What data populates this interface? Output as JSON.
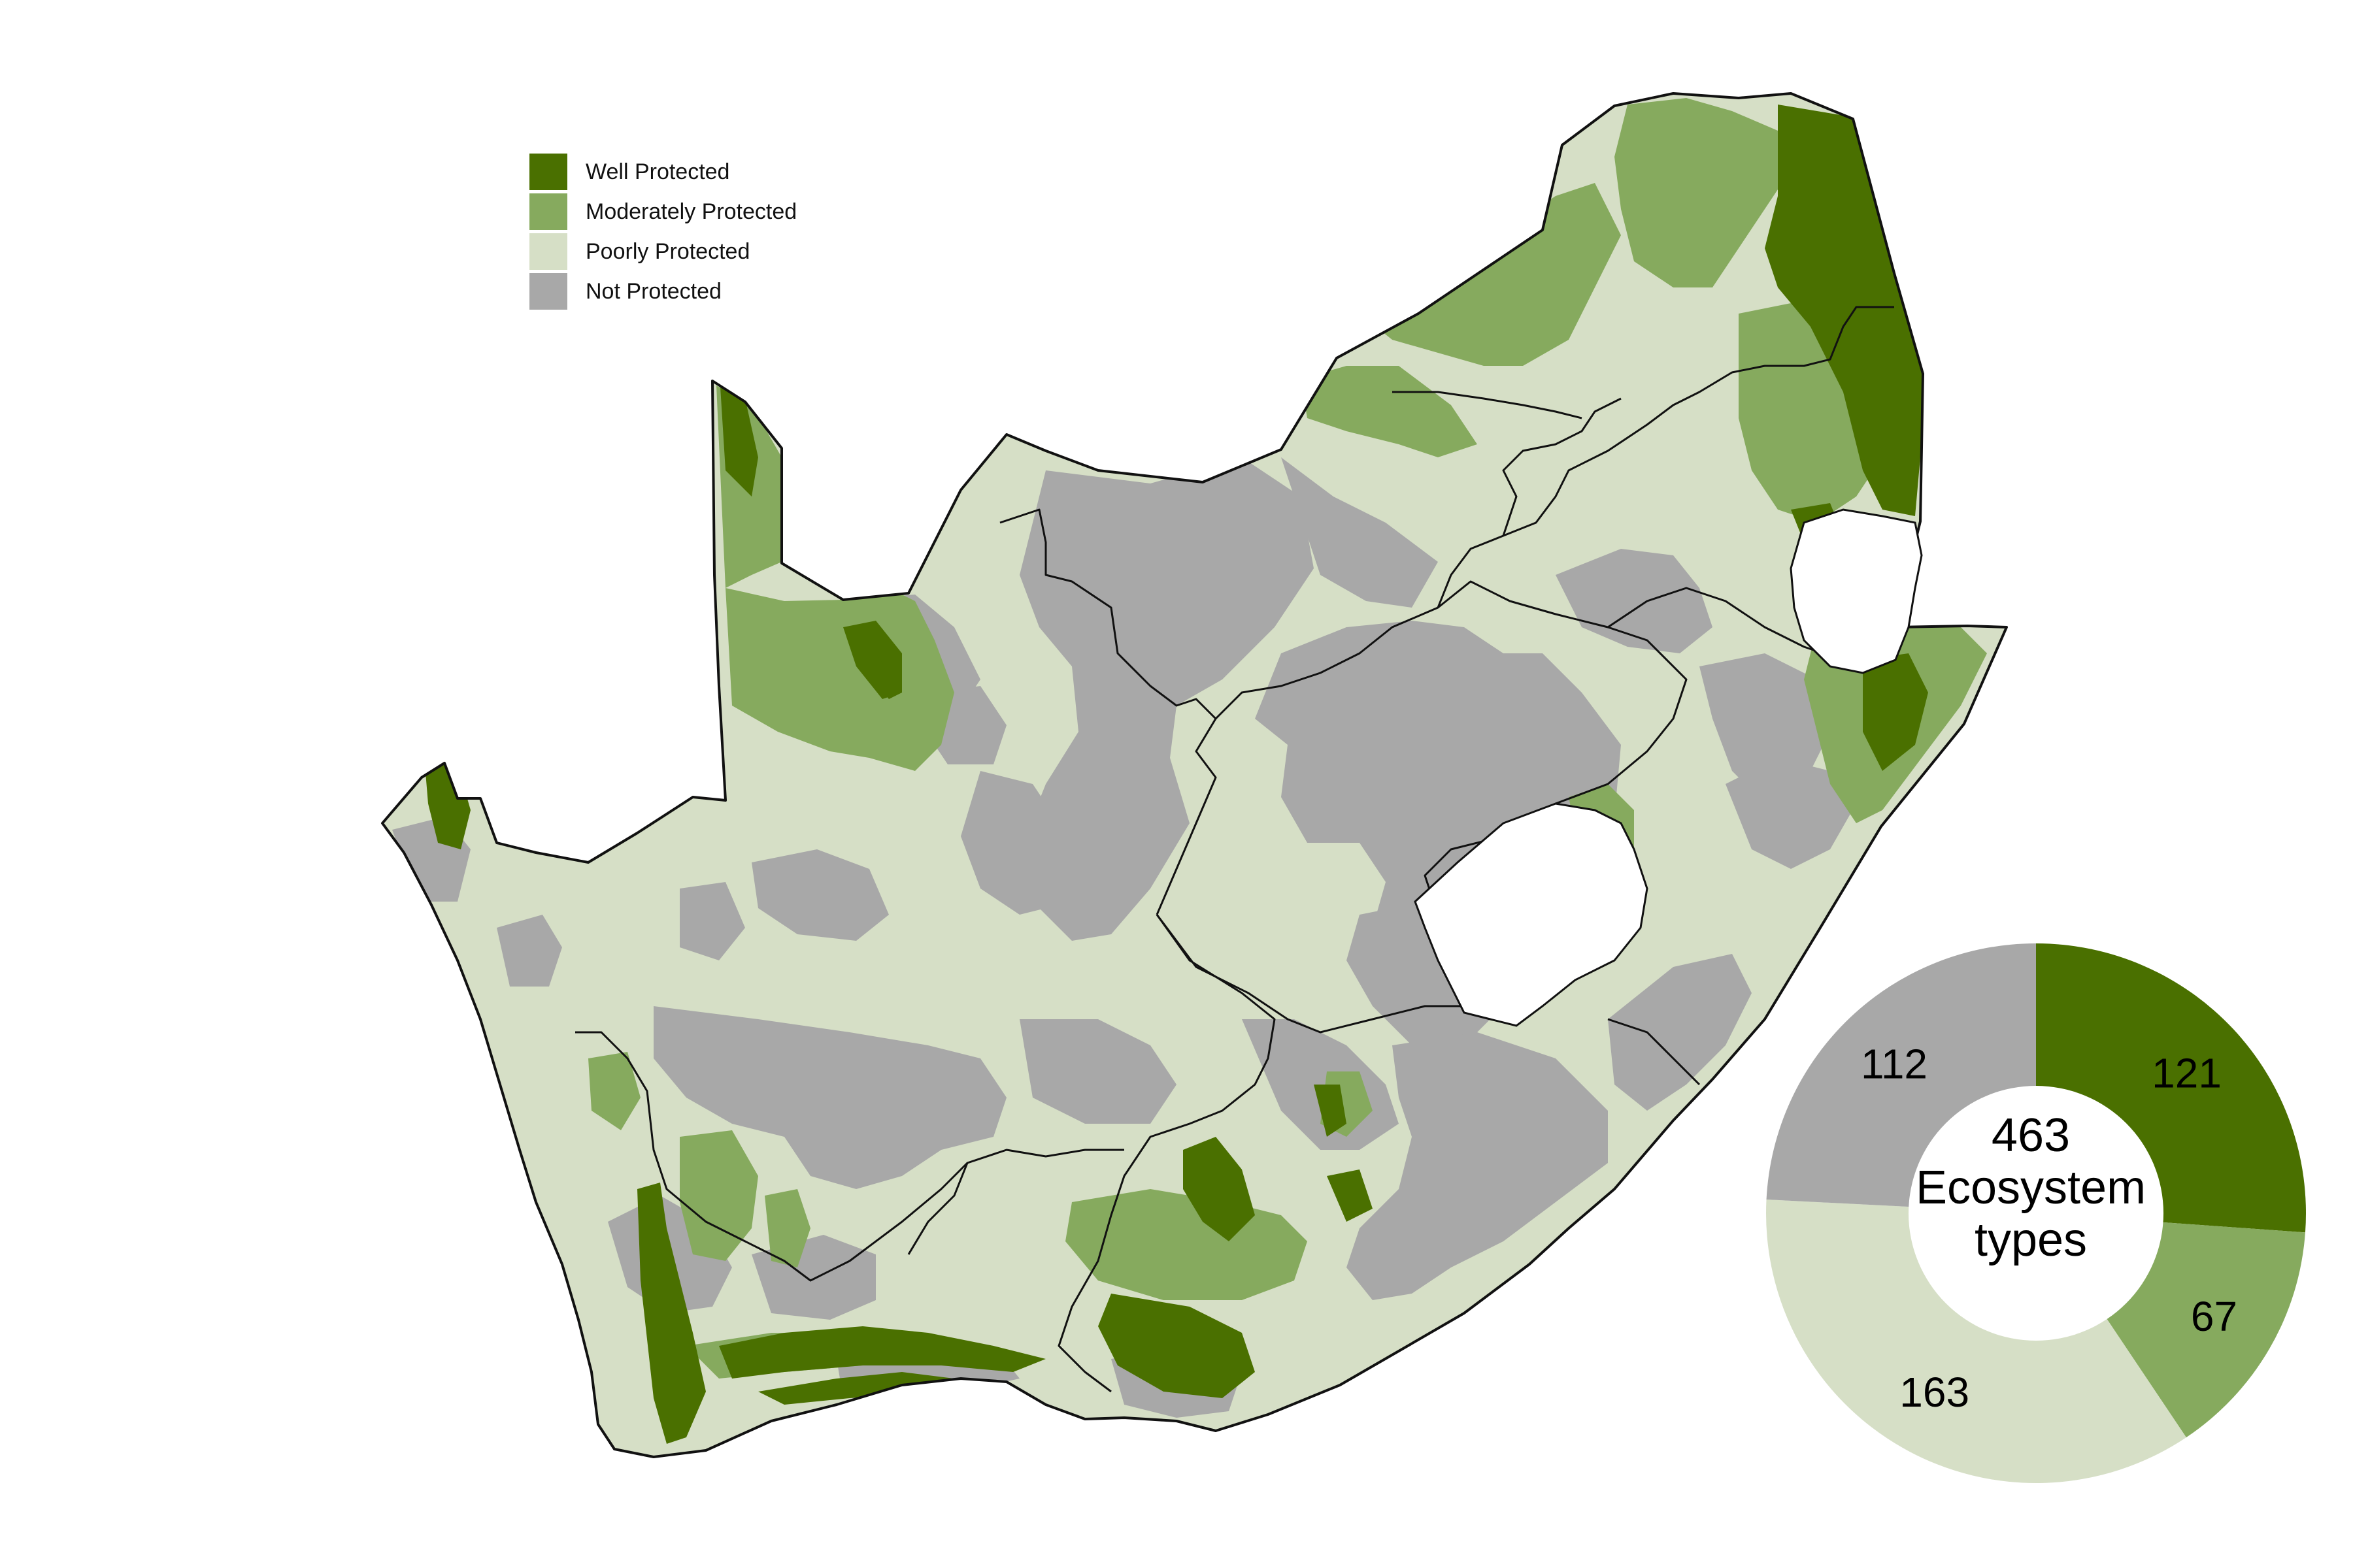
{
  "colors": {
    "well": "#4a7000",
    "moderate": "#86aa5e",
    "poor": "#d6dfc6",
    "not": "#a8a8a8",
    "boundary": "#111111",
    "background": "#ffffff"
  },
  "legend": {
    "items": [
      {
        "label": "Well Protected",
        "color": "#4a7000"
      },
      {
        "label": "Moderately Protected",
        "color": "#86aa5e"
      },
      {
        "label": "Poorly Protected",
        "color": "#d6dfc6"
      },
      {
        "label": "Not Protected",
        "color": "#a8a8a8"
      }
    ]
  },
  "chart_data": {
    "type": "pie",
    "categories": [
      "Well Protected",
      "Moderately Protected",
      "Poorly Protected",
      "Not Protected"
    ],
    "values": [
      121,
      67,
      163,
      112
    ],
    "colors": [
      "#4a7000",
      "#86aa5e",
      "#d6dfc6",
      "#a8a8a8"
    ],
    "center_label": [
      "463",
      "Ecosystem",
      "types"
    ]
  }
}
